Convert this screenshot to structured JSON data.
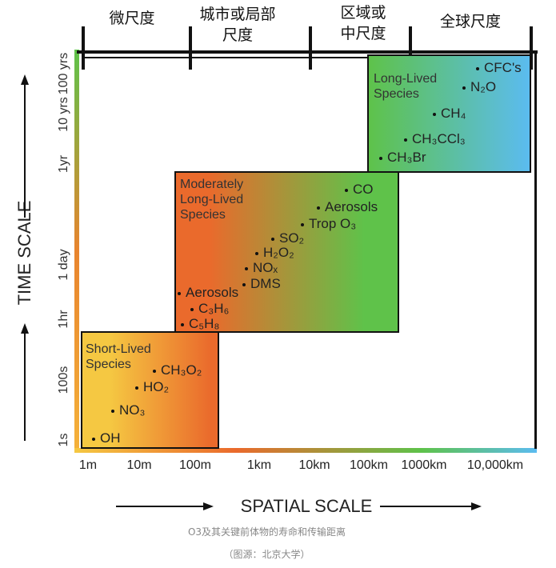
{
  "scale_headers": [
    {
      "lines": [
        "微尺度"
      ]
    },
    {
      "lines": [
        "城市或局部",
        "尺度"
      ]
    },
    {
      "lines": [
        "区域或",
        "中尺度"
      ]
    },
    {
      "lines": [
        "全球尺度"
      ]
    }
  ],
  "y_axis": {
    "label": "TIME SCALE",
    "ticks": [
      "100 yrs",
      "10 yrs",
      "1yr",
      "1 day",
      "1hr",
      "100s",
      "1s"
    ]
  },
  "x_axis": {
    "label": "SPATIAL SCALE",
    "ticks": [
      "1m",
      "10m",
      "100m",
      "1km",
      "10km",
      "100km",
      "1000km",
      "10,000km"
    ]
  },
  "groups": [
    {
      "title": "Long-Lived\nSpecies",
      "colors": [
        "#5ec24a",
        "#5bbcf0"
      ],
      "species": [
        "CFC's",
        "N₂O",
        "CH₄",
        "CH₃CCl₃",
        "CH₃Br"
      ]
    },
    {
      "title": "Moderately\nLong-Lived\nSpecies",
      "colors": [
        "#ea6a2c",
        "#5fc24a"
      ],
      "species": [
        "CO",
        "Aerosols",
        "Trop O₃",
        "SO₂",
        "H₂O₂",
        "NOₓ",
        "DMS",
        "Aerosols",
        "C₃H₆",
        "C₅H₈"
      ]
    },
    {
      "title": "Short-Lived\nSpecies",
      "colors": [
        "#f5c842",
        "#ea6a2c"
      ],
      "species": [
        "CH₃O₂",
        "HO₂",
        "NO₃",
        "OH"
      ]
    }
  ],
  "caption": "O3及其关键前体物的寿命和传输距离",
  "source": "（图源：北京大学）"
}
